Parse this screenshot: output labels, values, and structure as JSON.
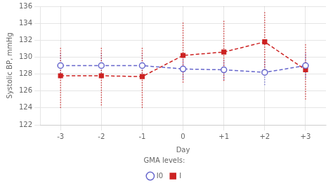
{
  "chart_data": {
    "type": "line",
    "xlabel": "Day",
    "ylabel": "Systolic BP, mmHg",
    "x": [
      -3,
      -2,
      -1,
      0,
      1,
      2,
      3
    ],
    "xlim": [
      -3.5,
      3.5
    ],
    "xticks": [
      -3,
      -2,
      -1,
      0,
      {
        "value": 1,
        "label": "+1"
      },
      {
        "value": 2,
        "label": "+2"
      },
      {
        "value": 3,
        "label": "+3"
      }
    ],
    "ylim": [
      122,
      136
    ],
    "yticks": [
      122,
      124,
      126,
      128,
      130,
      132,
      134,
      136
    ],
    "grid": true,
    "legend": "bottom",
    "legend_title": "GMA levels:",
    "series": [
      {
        "name": "I0",
        "color": "#6666cc",
        "marker": "open_circle",
        "line_style": "dashed",
        "values": [
          129.0,
          129.0,
          129.0,
          128.6,
          128.5,
          128.2,
          129.0
        ],
        "yerr_upper": [
          1.5,
          1.5,
          1.5,
          1.2,
          1.2,
          1.5,
          1.5
        ],
        "yerr_lower": [
          1.5,
          1.5,
          1.5,
          1.2,
          1.2,
          1.5,
          1.5
        ]
      },
      {
        "name": "I",
        "color": "#cc2222",
        "marker": "square",
        "line_style": "dashed",
        "values": [
          127.8,
          127.8,
          127.7,
          130.2,
          130.6,
          131.8,
          128.5
        ],
        "yerr_upper": [
          3.3,
          3.3,
          3.4,
          4.0,
          3.7,
          3.5,
          3.0
        ],
        "yerr_lower": [
          3.8,
          3.5,
          3.7,
          3.2,
          3.4,
          3.3,
          3.5
        ]
      }
    ]
  }
}
